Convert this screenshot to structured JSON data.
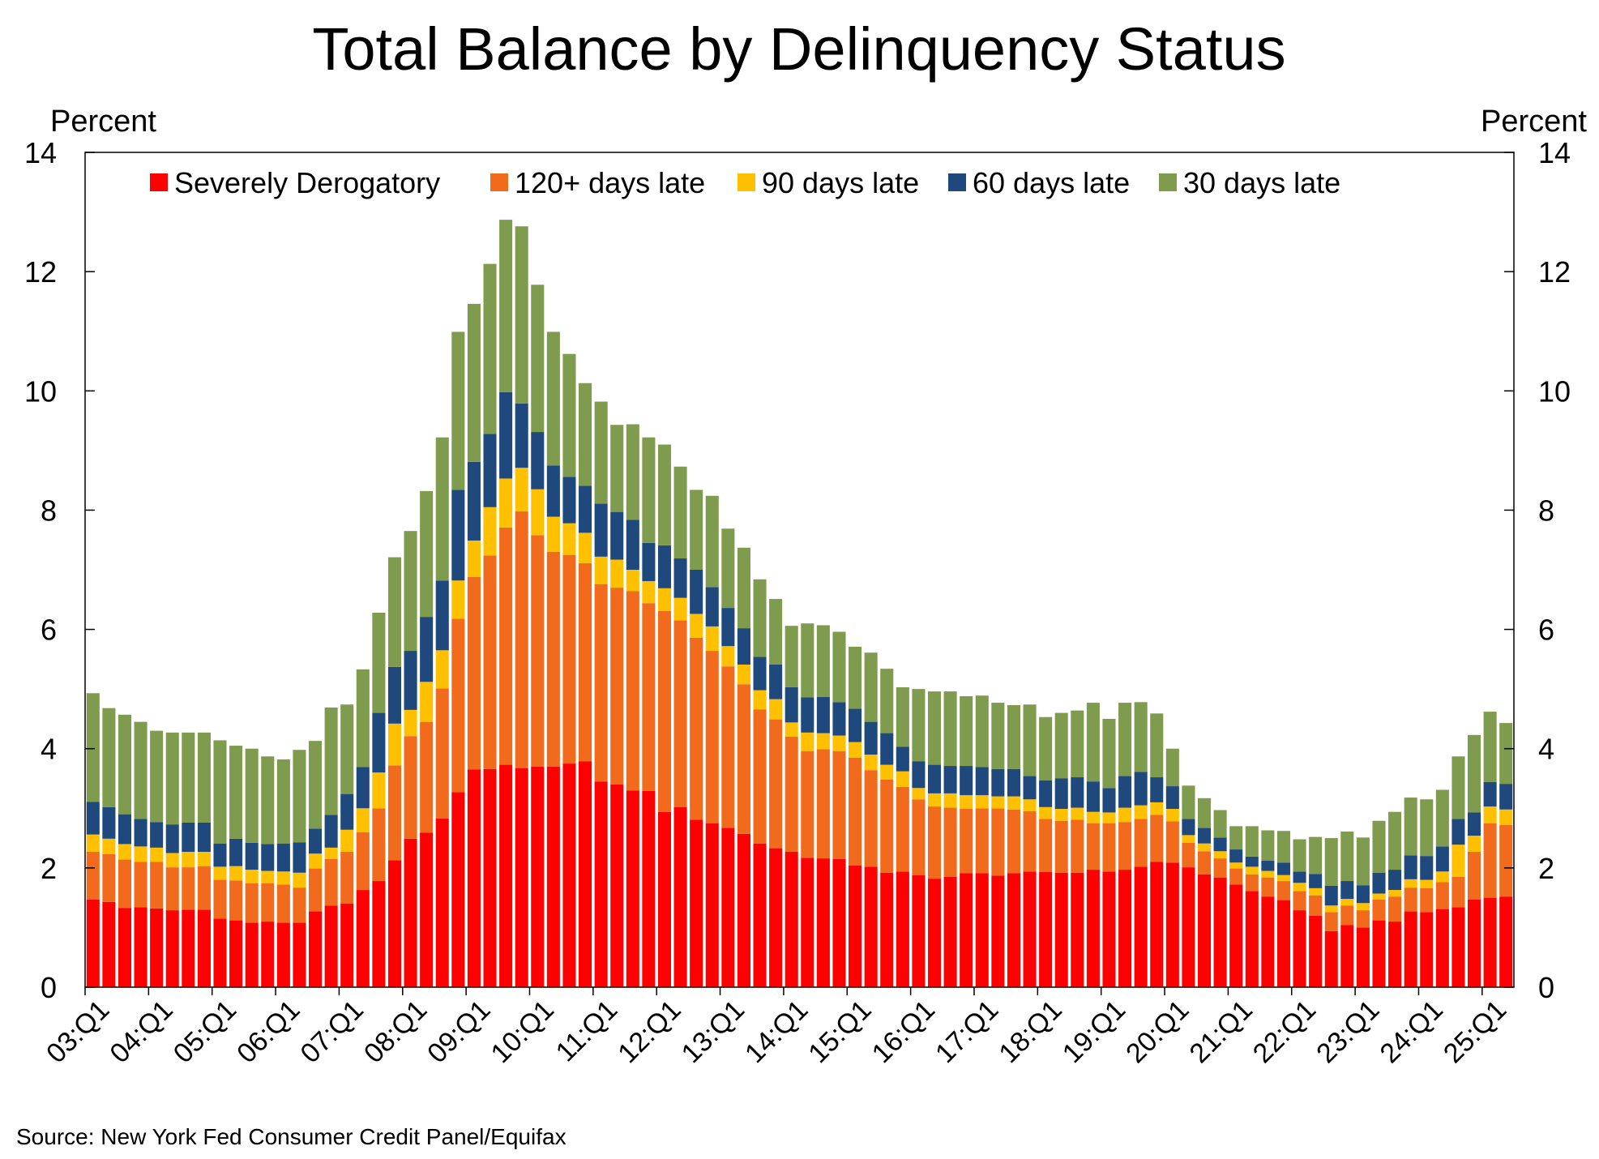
{
  "source_note": "Source: New York Fed Consumer Credit Panel/Equifax",
  "chart_data": {
    "type": "bar",
    "stacked": true,
    "title": "Total Balance by Delinquency Status",
    "ylabel_left": "Percent",
    "ylabel_right": "Percent",
    "ylim": [
      0,
      14
    ],
    "yticks": [
      0,
      2,
      4,
      6,
      8,
      10,
      12,
      14
    ],
    "grid": false,
    "legend_position": "top",
    "x_tick_labels": [
      "03:Q1",
      "04:Q1",
      "05:Q1",
      "06:Q1",
      "07:Q1",
      "08:Q1",
      "09:Q1",
      "10:Q1",
      "11:Q1",
      "12:Q1",
      "13:Q1",
      "14:Q1",
      "15:Q1",
      "16:Q1",
      "17:Q1",
      "18:Q1",
      "19:Q1",
      "20:Q1",
      "21:Q1",
      "22:Q1",
      "23:Q1",
      "24:Q1",
      "25:Q1"
    ],
    "categories": [
      "03:Q1",
      "03:Q2",
      "03:Q3",
      "03:Q4",
      "04:Q1",
      "04:Q2",
      "04:Q3",
      "04:Q4",
      "05:Q1",
      "05:Q2",
      "05:Q3",
      "05:Q4",
      "06:Q1",
      "06:Q2",
      "06:Q3",
      "06:Q4",
      "07:Q1",
      "07:Q2",
      "07:Q3",
      "07:Q4",
      "08:Q1",
      "08:Q2",
      "08:Q3",
      "08:Q4",
      "09:Q1",
      "09:Q2",
      "09:Q3",
      "09:Q4",
      "10:Q1",
      "10:Q2",
      "10:Q3",
      "10:Q4",
      "11:Q1",
      "11:Q2",
      "11:Q3",
      "11:Q4",
      "12:Q1",
      "12:Q2",
      "12:Q3",
      "12:Q4",
      "13:Q1",
      "13:Q2",
      "13:Q3",
      "13:Q4",
      "14:Q1",
      "14:Q2",
      "14:Q3",
      "14:Q4",
      "15:Q1",
      "15:Q2",
      "15:Q3",
      "15:Q4",
      "16:Q1",
      "16:Q2",
      "16:Q3",
      "16:Q4",
      "17:Q1",
      "17:Q2",
      "17:Q3",
      "17:Q4",
      "18:Q1",
      "18:Q2",
      "18:Q3",
      "18:Q4",
      "19:Q1",
      "19:Q2",
      "19:Q3",
      "19:Q4",
      "20:Q1",
      "20:Q2",
      "20:Q3",
      "20:Q4",
      "21:Q1",
      "21:Q2",
      "21:Q3",
      "21:Q4",
      "22:Q1",
      "22:Q2",
      "22:Q3",
      "22:Q4",
      "23:Q1",
      "23:Q2",
      "23:Q3",
      "23:Q4",
      "24:Q1",
      "24:Q2",
      "24:Q3",
      "24:Q4",
      "25:Q1",
      "25:Q2"
    ],
    "series": [
      {
        "name": "Severely Derogatory",
        "color": "#ff0000",
        "values": [
          1.47,
          1.43,
          1.33,
          1.34,
          1.32,
          1.29,
          1.3,
          1.3,
          1.15,
          1.12,
          1.08,
          1.1,
          1.08,
          1.08,
          1.27,
          1.37,
          1.4,
          1.63,
          1.78,
          2.13,
          2.49,
          2.59,
          2.83,
          3.27,
          3.65,
          3.66,
          3.73,
          3.67,
          3.7,
          3.7,
          3.75,
          3.79,
          3.45,
          3.4,
          3.3,
          3.29,
          2.94,
          3.02,
          2.81,
          2.75,
          2.67,
          2.57,
          2.41,
          2.33,
          2.27,
          2.17,
          2.16,
          2.15,
          2.04,
          2.02,
          1.92,
          1.94,
          1.88,
          1.82,
          1.85,
          1.91,
          1.91,
          1.87,
          1.91,
          1.94,
          1.93,
          1.92,
          1.92,
          1.97,
          1.94,
          1.97,
          2.02,
          2.1,
          2.09,
          2.01,
          1.89,
          1.84,
          1.72,
          1.61,
          1.52,
          1.46,
          1.29,
          1.2,
          0.94,
          1.04,
          1.0,
          1.12,
          1.1,
          1.27,
          1.26,
          1.31,
          1.34,
          1.47,
          1.5,
          1.52
        ]
      },
      {
        "name": "120+ days late",
        "color": "#f26b1d",
        "values": [
          0.8,
          0.8,
          0.81,
          0.76,
          0.78,
          0.72,
          0.71,
          0.73,
          0.65,
          0.67,
          0.66,
          0.64,
          0.64,
          0.59,
          0.72,
          0.78,
          0.87,
          0.97,
          1.22,
          1.59,
          1.72,
          1.86,
          2.18,
          2.91,
          3.23,
          3.58,
          3.98,
          4.31,
          3.88,
          3.6,
          3.5,
          3.32,
          3.31,
          3.3,
          3.34,
          3.15,
          3.37,
          3.13,
          3.05,
          2.89,
          2.71,
          2.51,
          2.25,
          2.16,
          1.93,
          1.79,
          1.83,
          1.81,
          1.81,
          1.62,
          1.56,
          1.42,
          1.27,
          1.21,
          1.16,
          1.08,
          1.09,
          1.13,
          1.07,
          1.01,
          0.89,
          0.87,
          0.89,
          0.78,
          0.81,
          0.8,
          0.8,
          0.79,
          0.69,
          0.41,
          0.39,
          0.32,
          0.27,
          0.28,
          0.32,
          0.32,
          0.32,
          0.34,
          0.32,
          0.33,
          0.29,
          0.35,
          0.42,
          0.4,
          0.4,
          0.45,
          0.51,
          0.8,
          1.25,
          1.2
        ]
      },
      {
        "name": "90 days late",
        "color": "#ffc000",
        "values": [
          0.29,
          0.26,
          0.26,
          0.26,
          0.24,
          0.24,
          0.26,
          0.24,
          0.22,
          0.24,
          0.23,
          0.21,
          0.22,
          0.25,
          0.25,
          0.19,
          0.37,
          0.4,
          0.6,
          0.7,
          0.44,
          0.67,
          0.64,
          0.64,
          0.61,
          0.81,
          0.82,
          0.73,
          0.77,
          0.59,
          0.53,
          0.51,
          0.46,
          0.47,
          0.36,
          0.37,
          0.38,
          0.38,
          0.4,
          0.41,
          0.34,
          0.33,
          0.32,
          0.34,
          0.24,
          0.31,
          0.27,
          0.26,
          0.26,
          0.26,
          0.25,
          0.26,
          0.19,
          0.22,
          0.24,
          0.23,
          0.22,
          0.2,
          0.22,
          0.2,
          0.2,
          0.2,
          0.2,
          0.19,
          0.18,
          0.24,
          0.23,
          0.21,
          0.21,
          0.13,
          0.13,
          0.12,
          0.1,
          0.13,
          0.11,
          0.1,
          0.14,
          0.12,
          0.11,
          0.11,
          0.12,
          0.1,
          0.11,
          0.14,
          0.14,
          0.18,
          0.54,
          0.27,
          0.28,
          0.26
        ]
      },
      {
        "name": "60 days late",
        "color": "#1f497d",
        "values": [
          0.55,
          0.53,
          0.5,
          0.46,
          0.43,
          0.48,
          0.49,
          0.49,
          0.39,
          0.46,
          0.45,
          0.45,
          0.47,
          0.51,
          0.42,
          0.55,
          0.6,
          0.69,
          1.0,
          0.95,
          0.99,
          1.09,
          1.17,
          1.52,
          1.32,
          1.23,
          1.45,
          1.08,
          0.96,
          0.86,
          0.78,
          0.79,
          0.89,
          0.8,
          0.84,
          0.64,
          0.72,
          0.66,
          0.74,
          0.66,
          0.64,
          0.61,
          0.56,
          0.58,
          0.59,
          0.59,
          0.61,
          0.56,
          0.56,
          0.55,
          0.53,
          0.41,
          0.45,
          0.48,
          0.46,
          0.49,
          0.47,
          0.46,
          0.46,
          0.39,
          0.45,
          0.51,
          0.51,
          0.51,
          0.41,
          0.53,
          0.56,
          0.42,
          0.38,
          0.27,
          0.26,
          0.23,
          0.22,
          0.17,
          0.17,
          0.21,
          0.19,
          0.24,
          0.33,
          0.3,
          0.3,
          0.35,
          0.34,
          0.4,
          0.4,
          0.42,
          0.43,
          0.39,
          0.41,
          0.43
        ]
      },
      {
        "name": "30 days late",
        "color": "#7f9b4e",
        "values": [
          1.82,
          1.66,
          1.67,
          1.63,
          1.53,
          1.54,
          1.51,
          1.51,
          1.73,
          1.56,
          1.58,
          1.47,
          1.41,
          1.55,
          1.47,
          1.8,
          1.5,
          1.64,
          1.68,
          1.84,
          2.01,
          2.11,
          2.4,
          2.65,
          2.65,
          2.85,
          2.89,
          2.97,
          2.47,
          2.24,
          2.06,
          1.72,
          1.71,
          1.46,
          1.6,
          1.77,
          1.69,
          1.54,
          1.34,
          1.53,
          1.33,
          1.35,
          1.3,
          1.1,
          1.03,
          1.24,
          1.2,
          1.18,
          1.04,
          1.16,
          1.08,
          1.0,
          1.21,
          1.23,
          1.25,
          1.17,
          1.2,
          1.11,
          1.07,
          1.2,
          1.06,
          1.1,
          1.12,
          1.32,
          1.16,
          1.23,
          1.17,
          1.07,
          0.63,
          0.56,
          0.5,
          0.46,
          0.39,
          0.51,
          0.51,
          0.53,
          0.54,
          0.62,
          0.8,
          0.83,
          0.8,
          0.87,
          0.97,
          0.97,
          0.95,
          0.95,
          1.05,
          1.3,
          1.18,
          1.02
        ]
      }
    ]
  }
}
